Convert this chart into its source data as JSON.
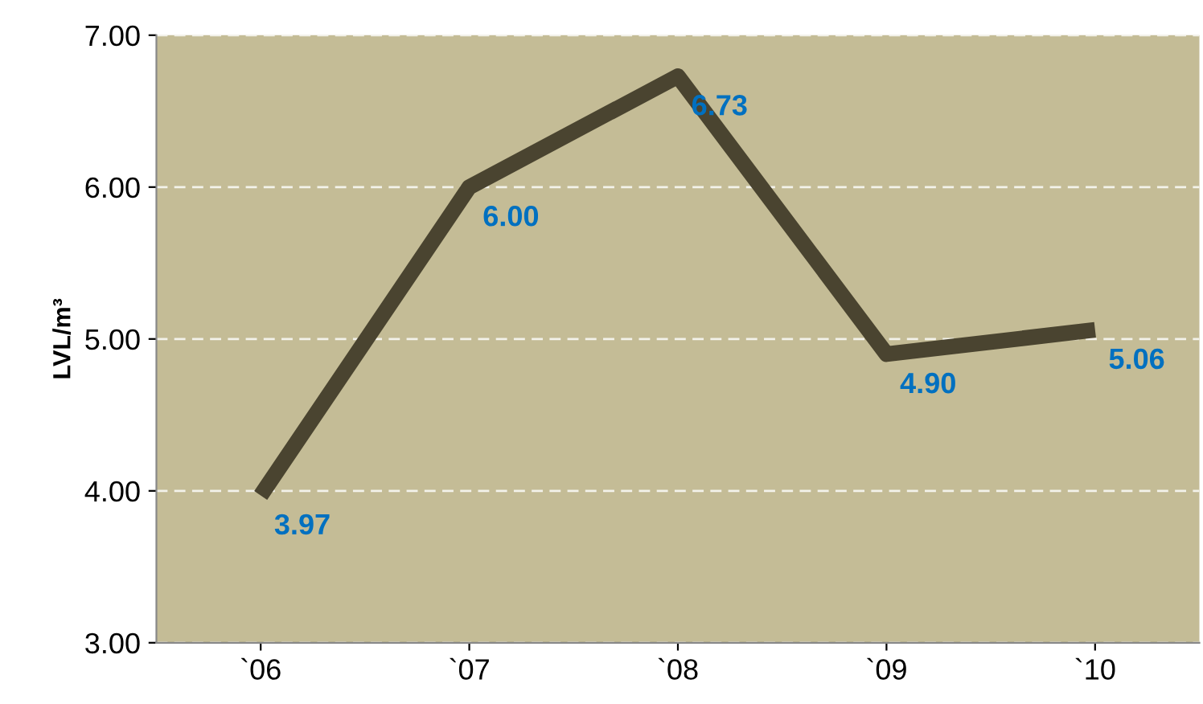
{
  "chart_data": {
    "type": "line",
    "ylabel": "LVL/m³",
    "categories": [
      "`06",
      "`07",
      "`08",
      "`09",
      "`10"
    ],
    "series": [
      {
        "color": "#4a4430",
        "values": [
          3.97,
          6.0,
          6.73,
          4.9,
          5.06
        ],
        "value_labels": [
          "3.97",
          "6.00",
          "6.73",
          "4.90",
          "5.06"
        ]
      }
    ],
    "ylim": [
      3,
      7
    ],
    "yticks": [
      {
        "value": 3,
        "label": "3.00"
      },
      {
        "value": 4,
        "label": "4.00"
      },
      {
        "value": 5,
        "label": "5.00"
      },
      {
        "value": 6,
        "label": "6.00"
      },
      {
        "value": 7,
        "label": "7.00"
      }
    ],
    "grid": "y",
    "legend": false,
    "marker": "none",
    "line_style": "solid"
  }
}
